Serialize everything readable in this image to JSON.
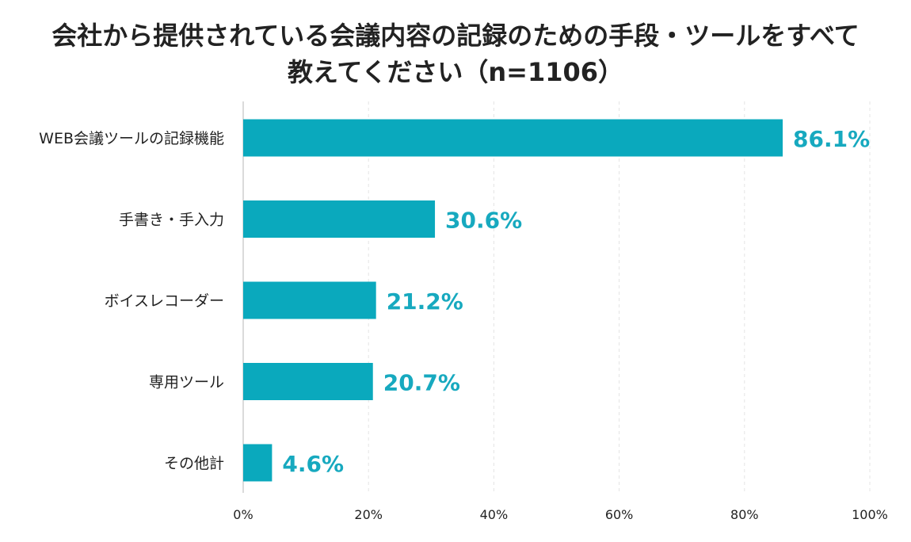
{
  "chart_data": {
    "type": "bar",
    "orientation": "horizontal",
    "title_lines": [
      "会社から提供されている会議内容の記録のための手段・ツールをすべて",
      "教えてください（n=1106）"
    ],
    "categories": [
      "WEB会議ツールの記録機能",
      "手書き・手入力",
      "ボイスレコーダー",
      "専用ツール",
      "その他計"
    ],
    "values": [
      86.1,
      30.6,
      21.2,
      20.7,
      4.6
    ],
    "value_labels": [
      "86.1%",
      "30.6%",
      "21.2%",
      "20.7%",
      "4.6%"
    ],
    "xlim": [
      0,
      100
    ],
    "x_ticks": [
      0,
      20,
      40,
      60,
      80,
      100
    ],
    "x_tick_labels": [
      "0%",
      "20%",
      "40%",
      "60%",
      "80%",
      "100%"
    ],
    "xlabel": "",
    "ylabel": "",
    "grid": true,
    "legend": "none",
    "bar_color": "#0aa9bd",
    "label_color": "#17a9bf"
  }
}
